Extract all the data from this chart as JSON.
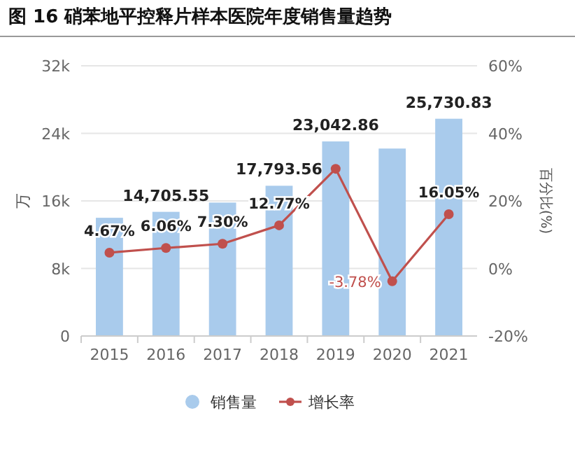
{
  "chart_data": {
    "type": "bar",
    "title": "图 16  硝苯地平控释片样本医院年度销售量趋势",
    "ylabel": "万",
    "y2label": "百分比(%)",
    "categories": [
      "2015",
      "2016",
      "2017",
      "2018",
      "2019",
      "2020",
      "2021"
    ],
    "series": [
      {
        "name": "销售量",
        "color": "#a9cbec",
        "values": [
          14000,
          14705.55,
          15800,
          17793.56,
          23042.86,
          22200,
          25730.83
        ],
        "value_labels": [
          null,
          "14,705.55",
          null,
          "17,793.56",
          "23,042.86",
          null,
          "25,730.83"
        ]
      },
      {
        "name": "增长率",
        "type": "line",
        "axis": "y2",
        "color": "#c0504d",
        "marker": "circle",
        "values": [
          4.67,
          6.06,
          7.3,
          12.77,
          29.5,
          -3.78,
          16.05
        ],
        "value_labels": [
          "4.67%",
          "6.06%",
          "7.30%",
          "12.77%",
          null,
          "-3.78%",
          "16.05%"
        ]
      }
    ],
    "ylim": [
      0,
      32000
    ],
    "yticks": [
      {
        "value": 0,
        "label": "0"
      },
      {
        "value": 8000,
        "label": "8k"
      },
      {
        "value": 16000,
        "label": "16k"
      },
      {
        "value": 24000,
        "label": "24k"
      },
      {
        "value": 32000,
        "label": "32k"
      }
    ],
    "y2lim": [
      -20,
      60
    ],
    "y2ticks": [
      {
        "value": -20,
        "label": "-20%"
      },
      {
        "value": 0,
        "label": "0%"
      },
      {
        "value": 20,
        "label": "20%"
      },
      {
        "value": 40,
        "label": "40%"
      },
      {
        "value": 60,
        "label": "60%"
      }
    ],
    "grid": "y",
    "legend": "bottom"
  }
}
